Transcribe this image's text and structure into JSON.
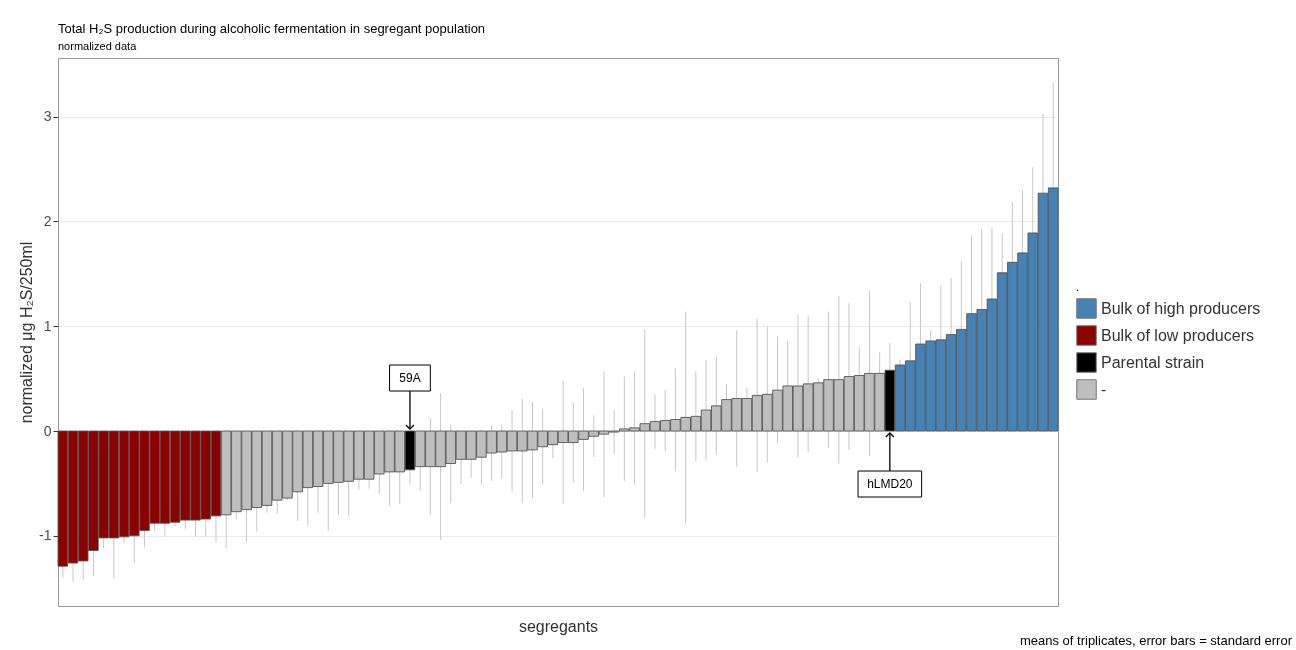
{
  "chart_data": {
    "type": "bar",
    "title": "Total H₂S production during alcoholic fermentation in segregant population",
    "subtitle": "normalized data",
    "xlabel": "segregants",
    "ylabel": "normalized μg H₂S/250ml",
    "legend_title": ".",
    "categories": [
      null,
      null,
      null,
      null,
      null,
      null,
      null,
      null,
      null,
      null,
      null,
      null,
      null,
      null,
      null,
      null,
      null,
      null,
      null,
      null,
      null,
      null,
      null,
      null,
      null,
      null,
      null,
      null,
      null,
      null,
      null,
      null,
      null,
      null,
      null,
      null,
      null,
      null,
      null,
      null,
      null,
      null,
      null,
      null,
      null,
      null,
      null,
      null,
      null,
      null,
      null,
      null,
      null,
      null,
      null,
      null,
      null,
      null,
      null,
      null,
      null,
      null,
      null,
      null,
      null,
      null,
      null,
      null,
      null,
      null,
      null,
      null,
      null,
      null,
      null,
      null,
      null,
      null,
      null,
      null,
      null,
      null,
      null,
      null,
      null,
      null,
      null,
      null,
      null,
      null,
      null,
      null,
      null,
      null,
      null,
      null,
      null,
      null
    ],
    "series": [
      {
        "name": "Bulk of high producers",
        "color": "#4682b4",
        "values": [
          null,
          null,
          null,
          null,
          null,
          null,
          null,
          null,
          null,
          null,
          null,
          null,
          null,
          null,
          null,
          null,
          null,
          null,
          null,
          null,
          null,
          null,
          null,
          null,
          null,
          null,
          null,
          null,
          null,
          null,
          null,
          null,
          null,
          null,
          null,
          null,
          null,
          null,
          null,
          null,
          null,
          null,
          null,
          null,
          null,
          null,
          null,
          null,
          null,
          null,
          null,
          null,
          null,
          null,
          null,
          null,
          null,
          null,
          null,
          null,
          null,
          null,
          null,
          null,
          null,
          null,
          null,
          null,
          null,
          null,
          null,
          null,
          null,
          null,
          null,
          null,
          null,
          null,
          null,
          null,
          null,
          null,
          0.63,
          0.67,
          0.83,
          0.86,
          0.87,
          0.92,
          0.97,
          1.12,
          1.16,
          1.26,
          1.51,
          1.61,
          1.7,
          1.89,
          2.27,
          2.32
        ],
        "errors": [
          null,
          null,
          null,
          null,
          null,
          null,
          null,
          null,
          null,
          null,
          null,
          null,
          null,
          null,
          null,
          null,
          null,
          null,
          null,
          null,
          null,
          null,
          null,
          null,
          null,
          null,
          null,
          null,
          null,
          null,
          null,
          null,
          null,
          null,
          null,
          null,
          null,
          null,
          null,
          null,
          null,
          null,
          null,
          null,
          null,
          null,
          null,
          null,
          null,
          null,
          null,
          null,
          null,
          null,
          null,
          null,
          null,
          null,
          null,
          null,
          null,
          null,
          null,
          null,
          null,
          null,
          null,
          null,
          null,
          null,
          null,
          null,
          null,
          null,
          null,
          null,
          null,
          null,
          null,
          null,
          null,
          null,
          0.05,
          0.56,
          0.58,
          0.1,
          0.52,
          0.54,
          0.65,
          0.74,
          0.77,
          0.68,
          0.38,
          0.58,
          0.6,
          0.63,
          0.76,
          1.0
        ]
      },
      {
        "name": "Bulk of low producers",
        "color": "#8b0000",
        "values": [
          -1.29,
          -1.26,
          -1.24,
          -1.14,
          -1.02,
          -1.02,
          -1.01,
          -1.0,
          -0.95,
          -0.88,
          -0.88,
          -0.87,
          -0.85,
          -0.85,
          -0.84,
          -0.81,
          null,
          null,
          null,
          null,
          null,
          null,
          null,
          null,
          null,
          null,
          null,
          null,
          null,
          null,
          null,
          null,
          null,
          null,
          null,
          null,
          null,
          null,
          null,
          null,
          null,
          null,
          null,
          null,
          null,
          null,
          null,
          null,
          null,
          null,
          null,
          null,
          null,
          null,
          null,
          null,
          null,
          null,
          null,
          null,
          null,
          null,
          null,
          null,
          null,
          null,
          null,
          null,
          null,
          null,
          null,
          null,
          null,
          null,
          null,
          null,
          null,
          null,
          null,
          null,
          null,
          null,
          null,
          null,
          null,
          null,
          null,
          null,
          null,
          null,
          null,
          null,
          null,
          null,
          null,
          null,
          null,
          null
        ],
        "errors": [
          0.11,
          0.18,
          0.18,
          0.24,
          0.1,
          0.39,
          0.06,
          0.26,
          0.16,
          0.08,
          0.13,
          0.04,
          0.09,
          0.16,
          0.17,
          0.25,
          null,
          null,
          null,
          null,
          null,
          null,
          null,
          null,
          null,
          null,
          null,
          null,
          null,
          null,
          null,
          null,
          null,
          null,
          null,
          null,
          null,
          null,
          null,
          null,
          null,
          null,
          null,
          null,
          null,
          null,
          null,
          null,
          null,
          null,
          null,
          null,
          null,
          null,
          null,
          null,
          null,
          null,
          null,
          null,
          null,
          null,
          null,
          null,
          null,
          null,
          null,
          null,
          null,
          null,
          null,
          null,
          null,
          null,
          null,
          null,
          null,
          null,
          null,
          null,
          null,
          null,
          null,
          null,
          null,
          null,
          null,
          null,
          null,
          null,
          null,
          null,
          null,
          null,
          null,
          null,
          null,
          null
        ]
      },
      {
        "name": "Parental strain",
        "color": "#000000",
        "values": [
          null,
          null,
          null,
          null,
          null,
          null,
          null,
          null,
          null,
          null,
          null,
          null,
          null,
          null,
          null,
          null,
          null,
          null,
          null,
          null,
          null,
          null,
          null,
          null,
          null,
          null,
          null,
          null,
          null,
          null,
          null,
          null,
          null,
          null,
          -0.37,
          null,
          null,
          null,
          null,
          null,
          null,
          null,
          null,
          null,
          null,
          null,
          null,
          null,
          null,
          null,
          null,
          null,
          null,
          null,
          null,
          null,
          null,
          null,
          null,
          null,
          null,
          null,
          null,
          null,
          null,
          null,
          null,
          null,
          null,
          null,
          null,
          null,
          null,
          null,
          null,
          null,
          null,
          null,
          null,
          null,
          null,
          0.58,
          null,
          null,
          null,
          null,
          null,
          null,
          null,
          null,
          null,
          null,
          null,
          null,
          null,
          null,
          null,
          null
        ],
        "errors": [
          null,
          null,
          null,
          null,
          null,
          null,
          null,
          null,
          null,
          null,
          null,
          null,
          null,
          null,
          null,
          null,
          null,
          null,
          null,
          null,
          null,
          null,
          null,
          null,
          null,
          null,
          null,
          null,
          null,
          null,
          null,
          null,
          null,
          null,
          0.14,
          null,
          null,
          null,
          null,
          null,
          null,
          null,
          null,
          null,
          null,
          null,
          null,
          null,
          null,
          null,
          null,
          null,
          null,
          null,
          null,
          null,
          null,
          null,
          null,
          null,
          null,
          null,
          null,
          null,
          null,
          null,
          null,
          null,
          null,
          null,
          null,
          null,
          null,
          null,
          null,
          null,
          null,
          null,
          null,
          null,
          null,
          0.26,
          null,
          null,
          null,
          null,
          null,
          null,
          null,
          null,
          null,
          null,
          null,
          null,
          null,
          null,
          null,
          null
        ]
      },
      {
        "name": "-",
        "color": "#bebebe",
        "values": [
          null,
          null,
          null,
          null,
          null,
          null,
          null,
          null,
          null,
          null,
          null,
          null,
          null,
          null,
          null,
          null,
          -0.8,
          -0.77,
          -0.75,
          -0.73,
          -0.71,
          -0.66,
          -0.64,
          -0.58,
          -0.54,
          -0.53,
          -0.5,
          -0.49,
          -0.48,
          -0.46,
          -0.46,
          -0.41,
          -0.39,
          -0.39,
          null,
          -0.34,
          -0.34,
          -0.34,
          -0.31,
          -0.27,
          -0.27,
          -0.25,
          -0.21,
          -0.2,
          -0.19,
          -0.19,
          -0.18,
          -0.15,
          -0.13,
          -0.11,
          -0.11,
          -0.08,
          -0.05,
          -0.03,
          -0.01,
          0.02,
          0.03,
          0.07,
          0.09,
          0.1,
          0.11,
          0.13,
          0.14,
          0.2,
          0.24,
          0.3,
          0.31,
          0.31,
          0.34,
          0.35,
          0.39,
          0.43,
          0.43,
          0.45,
          0.46,
          0.49,
          0.49,
          0.52,
          0.53,
          0.55,
          0.55,
          null,
          null,
          null,
          null,
          null,
          null,
          null,
          null,
          null,
          null,
          null,
          null,
          null,
          null,
          null,
          null,
          null
        ],
        "errors": [
          null,
          null,
          null,
          null,
          null,
          null,
          null,
          null,
          null,
          null,
          null,
          null,
          null,
          null,
          null,
          null,
          0.32,
          0.07,
          0.31,
          0.23,
          0.07,
          0.13,
          0.02,
          0.28,
          0.36,
          0.25,
          0.45,
          0.31,
          0.33,
          0.1,
          0.09,
          0.19,
          0.32,
          0.31,
          null,
          0.23,
          0.46,
          0.7,
          0.38,
          0.24,
          0.18,
          0.26,
          0.27,
          0.26,
          0.39,
          0.5,
          0.46,
          0.36,
          0.13,
          0.59,
          0.38,
          0.49,
          0.2,
          0.6,
          0.21,
          0.5,
          0.54,
          0.9,
          0.26,
          0.29,
          0.49,
          1.01,
          0.43,
          0.48,
          0.47,
          0.15,
          0.65,
          0.1,
          0.73,
          0.65,
          0.51,
          0.43,
          0.68,
          0.65,
          0.04,
          0.65,
          0.8,
          0.7,
          0.27,
          0.79,
          0.2,
          null,
          null,
          null,
          null,
          null,
          null,
          null,
          null,
          null,
          null,
          null,
          null,
          null,
          null,
          null,
          null,
          null
        ]
      }
    ],
    "ylim": [
      -1.67,
      3.56
    ],
    "yticks": [
      -1,
      0,
      1,
      2,
      3
    ],
    "grid": "y",
    "legend": "right",
    "tick_labels": "y",
    "annotations": [
      "59A",
      "hLMD20",
      "means of triplicates, error bars = standard error"
    ]
  }
}
